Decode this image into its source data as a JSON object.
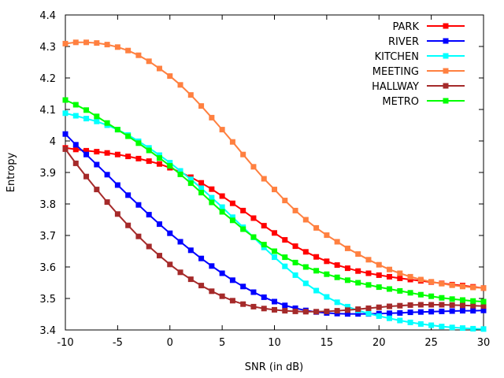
{
  "chart_data": {
    "type": "line",
    "title": "",
    "xlabel": "SNR (in dB)",
    "ylabel": "Entropy",
    "xlim": [
      -10,
      30
    ],
    "ylim": [
      3.4,
      4.4
    ],
    "grid": false,
    "legend": "top-right",
    "xticks": [
      -10,
      -5,
      0,
      5,
      10,
      15,
      20,
      25,
      30
    ],
    "yticks": [
      3.4,
      3.5,
      3.6,
      3.7,
      3.8,
      3.9,
      4.0,
      4.1,
      4.2,
      4.3,
      4.4
    ],
    "xtick_labels": [
      "-10",
      "-5",
      "0",
      "5",
      "10",
      "15",
      "20",
      "25",
      "30"
    ],
    "ytick_labels": [
      "3.4",
      "3.5",
      "3.6",
      "3.7",
      "3.8",
      "3.9",
      "4",
      "4.1",
      "4.2",
      "4.3",
      "4.4"
    ],
    "x": [
      -10,
      -9,
      -8,
      -7,
      -6,
      -5,
      -4,
      -3,
      -2,
      -1,
      0,
      1,
      2,
      3,
      4,
      5,
      6,
      7,
      8,
      9,
      10,
      11,
      12,
      13,
      14,
      15,
      16,
      17,
      18,
      19,
      20,
      21,
      22,
      23,
      24,
      25,
      26,
      27,
      28,
      29,
      30
    ],
    "series": [
      {
        "name": "PARK",
        "color": "#ff0000",
        "values": [
          3.978,
          3.973,
          3.969,
          3.966,
          3.962,
          3.957,
          3.951,
          3.944,
          3.936,
          3.927,
          3.915,
          3.901,
          3.885,
          3.867,
          3.847,
          3.825,
          3.802,
          3.779,
          3.755,
          3.731,
          3.708,
          3.686,
          3.666,
          3.648,
          3.632,
          3.618,
          3.606,
          3.596,
          3.587,
          3.58,
          3.574,
          3.569,
          3.564,
          3.56,
          3.556,
          3.552,
          3.548,
          3.544,
          3.541,
          3.537,
          3.533
        ]
      },
      {
        "name": "RIVER",
        "color": "#0000ff",
        "values": [
          4.022,
          3.988,
          3.957,
          3.925,
          3.893,
          3.86,
          3.828,
          3.797,
          3.766,
          3.736,
          3.707,
          3.68,
          3.653,
          3.627,
          3.603,
          3.58,
          3.558,
          3.538,
          3.52,
          3.504,
          3.49,
          3.478,
          3.469,
          3.462,
          3.457,
          3.454,
          3.452,
          3.451,
          3.451,
          3.451,
          3.452,
          3.453,
          3.454,
          3.456,
          3.457,
          3.458,
          3.459,
          3.46,
          3.461,
          3.461,
          3.462
        ]
      },
      {
        "name": "KITCHEN",
        "color": "#00ffff",
        "values": [
          4.088,
          4.08,
          4.071,
          4.062,
          4.05,
          4.036,
          4.019,
          3.999,
          3.978,
          3.955,
          3.931,
          3.905,
          3.878,
          3.85,
          3.82,
          3.79,
          3.758,
          3.726,
          3.694,
          3.662,
          3.631,
          3.602,
          3.574,
          3.548,
          3.525,
          3.505,
          3.488,
          3.474,
          3.462,
          3.452,
          3.444,
          3.437,
          3.43,
          3.424,
          3.419,
          3.415,
          3.411,
          3.408,
          3.406,
          3.404,
          3.403
        ]
      },
      {
        "name": "MEETING",
        "color": "#ff8040",
        "values": [
          4.309,
          4.313,
          4.313,
          4.311,
          4.306,
          4.298,
          4.287,
          4.272,
          4.253,
          4.23,
          4.206,
          4.178,
          4.146,
          4.111,
          4.074,
          4.036,
          3.997,
          3.957,
          3.918,
          3.88,
          3.846,
          3.811,
          3.779,
          3.75,
          3.724,
          3.701,
          3.68,
          3.659,
          3.641,
          3.623,
          3.607,
          3.592,
          3.58,
          3.569,
          3.56,
          3.553,
          3.547,
          3.542,
          3.538,
          3.535,
          3.533
        ]
      },
      {
        "name": "HALLWAY",
        "color": "#a52a2a",
        "values": [
          3.974,
          3.929,
          3.887,
          3.846,
          3.806,
          3.768,
          3.732,
          3.697,
          3.665,
          3.636,
          3.608,
          3.583,
          3.561,
          3.541,
          3.523,
          3.507,
          3.493,
          3.482,
          3.474,
          3.468,
          3.464,
          3.461,
          3.459,
          3.458,
          3.458,
          3.459,
          3.461,
          3.463,
          3.466,
          3.469,
          3.472,
          3.475,
          3.477,
          3.479,
          3.48,
          3.48,
          3.48,
          3.479,
          3.478,
          3.477,
          3.476
        ]
      },
      {
        "name": "METRO",
        "color": "#00ff00",
        "values": [
          4.13,
          4.115,
          4.098,
          4.078,
          4.057,
          4.036,
          4.015,
          3.993,
          3.97,
          3.946,
          3.921,
          3.894,
          3.866,
          3.836,
          3.805,
          3.775,
          3.748,
          3.72,
          3.695,
          3.671,
          3.65,
          3.631,
          3.614,
          3.6,
          3.588,
          3.577,
          3.567,
          3.558,
          3.55,
          3.543,
          3.536,
          3.53,
          3.524,
          3.518,
          3.512,
          3.507,
          3.502,
          3.498,
          3.495,
          3.492,
          3.49
        ]
      }
    ]
  }
}
